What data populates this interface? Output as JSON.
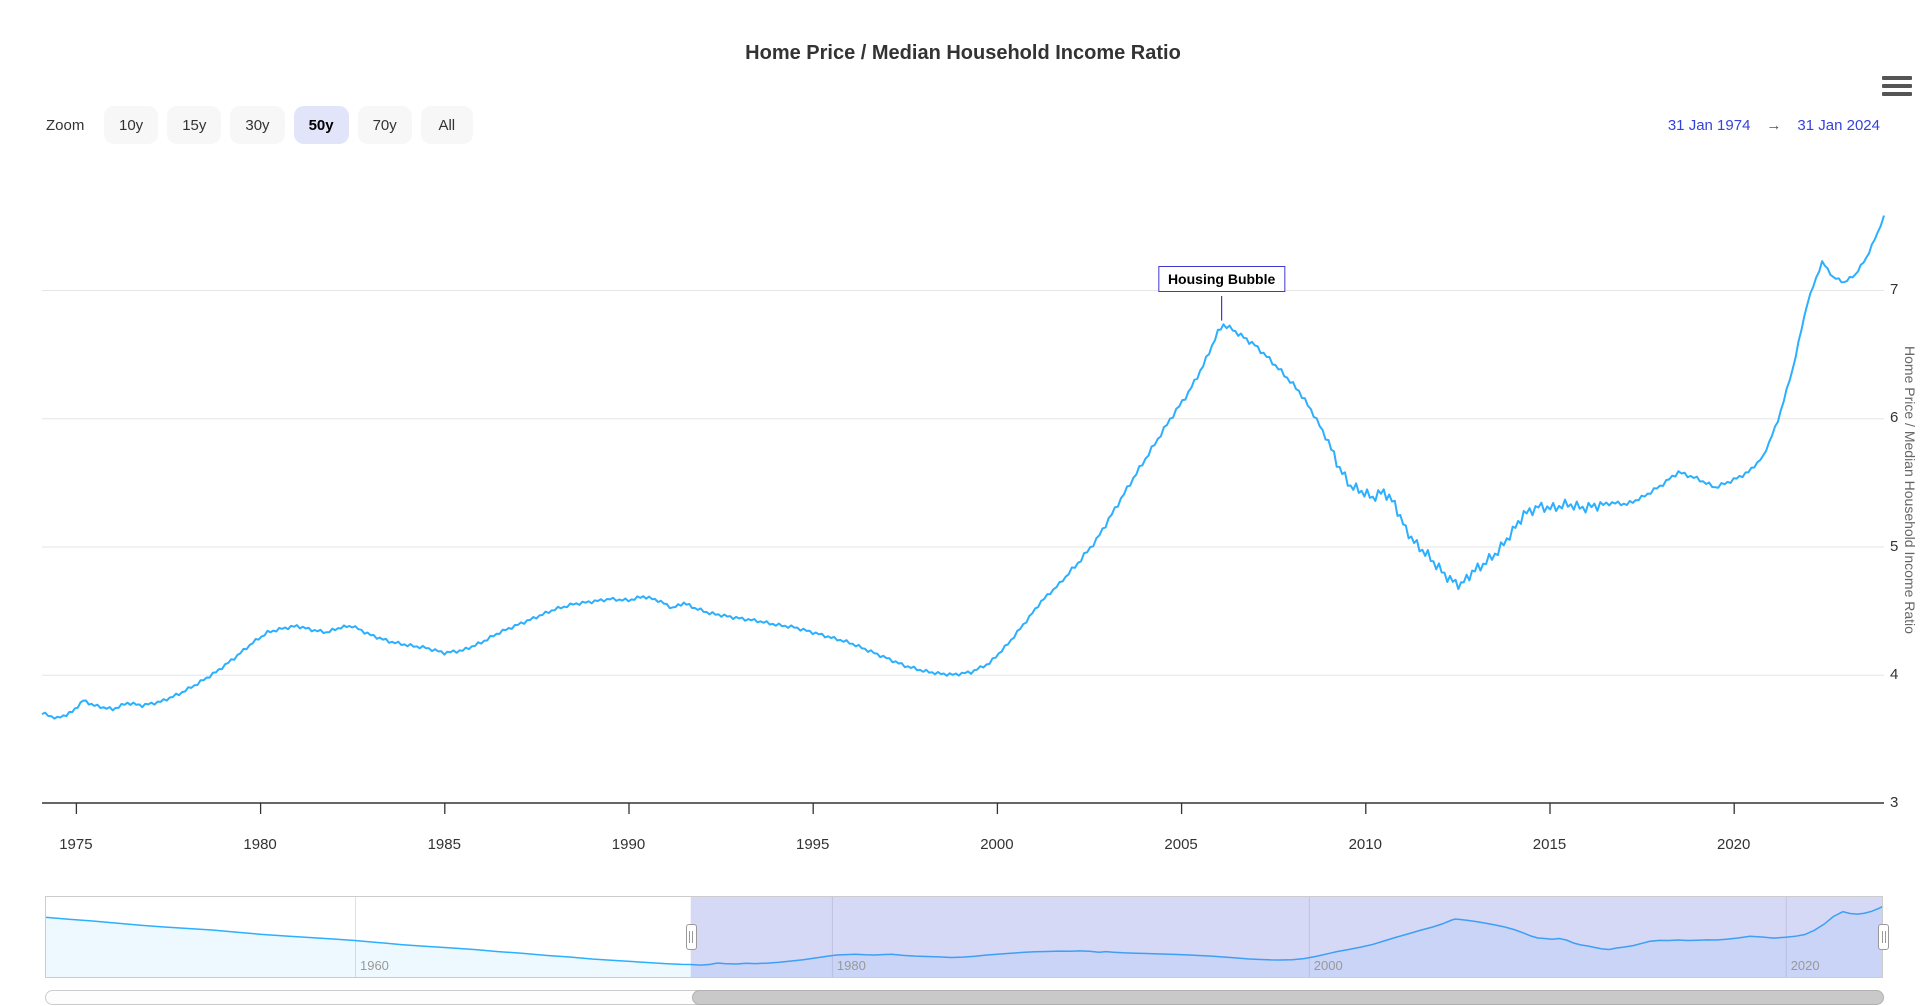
{
  "chart": {
    "title": "Home Price / Median Household Income Ratio"
  },
  "range_selector": {
    "zoom_label": "Zoom",
    "buttons": [
      {
        "label": "10y",
        "selected": false
      },
      {
        "label": "15y",
        "selected": false
      },
      {
        "label": "30y",
        "selected": false
      },
      {
        "label": "50y",
        "selected": true
      },
      {
        "label": "70y",
        "selected": false
      },
      {
        "label": "All",
        "selected": false
      }
    ],
    "from": "31 Jan 1974",
    "arrow": "→",
    "to": "31 Jan 2024"
  },
  "colors": {
    "series": "#2caffe",
    "grid": "#e6e6e6",
    "axis": "#333333",
    "annotation": "#4038cc",
    "date_link": "#3642dc",
    "selected_button_bg": "#e2e4fa",
    "button_bg": "#f7f7f7",
    "mask": "rgba(108,118,222,0.28)",
    "nav_fill": "rgba(44,175,254,0.08)",
    "nav_outline": "#cccccc"
  },
  "chart_data": {
    "type": "line",
    "title": "Home Price / Median Household Income Ratio",
    "xlabel": "",
    "ylabel": "Home Price / Median Household Income Ratio",
    "legend": "none",
    "grid": "horizontal",
    "x_ticks": [
      1975,
      1980,
      1985,
      1990,
      1995,
      2000,
      2005,
      2010,
      2015,
      2020
    ],
    "y_ticks": [
      3,
      4,
      5,
      6,
      7
    ],
    "x_range_shown": [
      1974.08,
      2024.08
    ],
    "y_range": [
      3,
      7.94
    ],
    "series": [
      {
        "name": "Home Price / Median Household Income Ratio",
        "color": "#2caffe",
        "points": [
          [
            1974.08,
            3.7
          ],
          [
            1974.5,
            3.66
          ],
          [
            1974.9,
            3.71
          ],
          [
            1975.2,
            3.8
          ],
          [
            1975.5,
            3.76
          ],
          [
            1976.0,
            3.73
          ],
          [
            1976.4,
            3.78
          ],
          [
            1976.8,
            3.76
          ],
          [
            1977.3,
            3.79
          ],
          [
            1977.8,
            3.85
          ],
          [
            1978.3,
            3.93
          ],
          [
            1978.8,
            4.02
          ],
          [
            1979.3,
            4.13
          ],
          [
            1979.8,
            4.25
          ],
          [
            1980.2,
            4.33
          ],
          [
            1980.6,
            4.36
          ],
          [
            1981.0,
            4.38
          ],
          [
            1981.4,
            4.35
          ],
          [
            1981.8,
            4.33
          ],
          [
            1982.2,
            4.37
          ],
          [
            1982.5,
            4.38
          ],
          [
            1983.0,
            4.31
          ],
          [
            1983.5,
            4.26
          ],
          [
            1984.0,
            4.23
          ],
          [
            1984.5,
            4.21
          ],
          [
            1985.0,
            4.17
          ],
          [
            1985.5,
            4.19
          ],
          [
            1986.0,
            4.25
          ],
          [
            1986.5,
            4.33
          ],
          [
            1987.0,
            4.39
          ],
          [
            1987.5,
            4.45
          ],
          [
            1988.0,
            4.51
          ],
          [
            1988.5,
            4.55
          ],
          [
            1989.0,
            4.57
          ],
          [
            1989.5,
            4.59
          ],
          [
            1990.0,
            4.58
          ],
          [
            1990.4,
            4.61
          ],
          [
            1990.8,
            4.58
          ],
          [
            1991.2,
            4.52
          ],
          [
            1991.5,
            4.56
          ],
          [
            1991.8,
            4.52
          ],
          [
            1992.2,
            4.48
          ],
          [
            1992.6,
            4.46
          ],
          [
            1993.0,
            4.44
          ],
          [
            1993.5,
            4.42
          ],
          [
            1994.0,
            4.39
          ],
          [
            1994.5,
            4.37
          ],
          [
            1995.0,
            4.33
          ],
          [
            1995.5,
            4.29
          ],
          [
            1996.0,
            4.25
          ],
          [
            1996.5,
            4.19
          ],
          [
            1997.0,
            4.13
          ],
          [
            1997.5,
            4.07
          ],
          [
            1998.0,
            4.03
          ],
          [
            1998.4,
            4.01
          ],
          [
            1998.8,
            4.0
          ],
          [
            1999.3,
            4.02
          ],
          [
            1999.8,
            4.09
          ],
          [
            2000.3,
            4.24
          ],
          [
            2000.8,
            4.42
          ],
          [
            2001.2,
            4.57
          ],
          [
            2001.7,
            4.71
          ],
          [
            2002.2,
            4.87
          ],
          [
            2002.7,
            5.05
          ],
          [
            2003.2,
            5.29
          ],
          [
            2003.7,
            5.53
          ],
          [
            2004.2,
            5.76
          ],
          [
            2004.7,
            5.99
          ],
          [
            2005.2,
            6.2
          ],
          [
            2005.6,
            6.41
          ],
          [
            2006.0,
            6.67
          ],
          [
            2006.15,
            6.73
          ],
          [
            2006.4,
            6.69
          ],
          [
            2006.7,
            6.63
          ],
          [
            2007.0,
            6.57
          ],
          [
            2007.4,
            6.46
          ],
          [
            2007.8,
            6.34
          ],
          [
            2008.2,
            6.21
          ],
          [
            2008.6,
            6.03
          ],
          [
            2009.0,
            5.81
          ],
          [
            2009.3,
            5.61
          ],
          [
            2009.6,
            5.47
          ],
          [
            2009.9,
            5.43
          ],
          [
            2010.2,
            5.38
          ],
          [
            2010.5,
            5.43
          ],
          [
            2010.8,
            5.33
          ],
          [
            2011.1,
            5.13
          ],
          [
            2011.4,
            5.01
          ],
          [
            2011.7,
            4.93
          ],
          [
            2012.0,
            4.83
          ],
          [
            2012.3,
            4.74
          ],
          [
            2012.6,
            4.7
          ],
          [
            2012.9,
            4.8
          ],
          [
            2013.2,
            4.86
          ],
          [
            2013.6,
            4.96
          ],
          [
            2014.0,
            5.12
          ],
          [
            2014.3,
            5.25
          ],
          [
            2014.7,
            5.31
          ],
          [
            2015.1,
            5.3
          ],
          [
            2015.5,
            5.33
          ],
          [
            2015.9,
            5.3
          ],
          [
            2016.3,
            5.32
          ],
          [
            2016.7,
            5.34
          ],
          [
            2017.1,
            5.33
          ],
          [
            2017.5,
            5.38
          ],
          [
            2018.0,
            5.47
          ],
          [
            2018.5,
            5.58
          ],
          [
            2019.0,
            5.53
          ],
          [
            2019.5,
            5.46
          ],
          [
            2020.0,
            5.52
          ],
          [
            2020.4,
            5.58
          ],
          [
            2020.8,
            5.7
          ],
          [
            2021.2,
            5.98
          ],
          [
            2021.6,
            6.38
          ],
          [
            2022.0,
            6.9
          ],
          [
            2022.4,
            7.22
          ],
          [
            2022.7,
            7.1
          ],
          [
            2023.0,
            7.06
          ],
          [
            2023.3,
            7.12
          ],
          [
            2023.6,
            7.25
          ],
          [
            2023.9,
            7.44
          ],
          [
            2024.08,
            7.58
          ]
        ]
      }
    ],
    "annotations": [
      {
        "label": "Housing Bubble",
        "x": 2006.1,
        "y": 6.73
      }
    ],
    "navigator": {
      "x_ticks": [
        1960,
        1980,
        2000,
        2020
      ],
      "full_range": [
        1947.0,
        2024.08
      ],
      "selected_range": [
        1974.08,
        2024.08
      ],
      "pre_points": [
        [
          1947.0,
          6.85
        ],
        [
          1948,
          6.72
        ],
        [
          1949,
          6.6
        ],
        [
          1950,
          6.46
        ],
        [
          1951,
          6.32
        ],
        [
          1952,
          6.2
        ],
        [
          1953,
          6.1
        ],
        [
          1954,
          6.0
        ],
        [
          1955,
          5.86
        ],
        [
          1956,
          5.72
        ],
        [
          1957,
          5.61
        ],
        [
          1958,
          5.51
        ],
        [
          1959,
          5.41
        ],
        [
          1960,
          5.3
        ],
        [
          1961,
          5.16
        ],
        [
          1962,
          5.02
        ],
        [
          1963,
          4.91
        ],
        [
          1964,
          4.81
        ],
        [
          1965,
          4.7
        ],
        [
          1966,
          4.56
        ],
        [
          1967,
          4.45
        ],
        [
          1968,
          4.31
        ],
        [
          1969,
          4.2
        ],
        [
          1970,
          4.06
        ],
        [
          1971,
          3.96
        ],
        [
          1972,
          3.86
        ],
        [
          1973,
          3.76
        ],
        [
          1973.7,
          3.71
        ]
      ]
    }
  }
}
